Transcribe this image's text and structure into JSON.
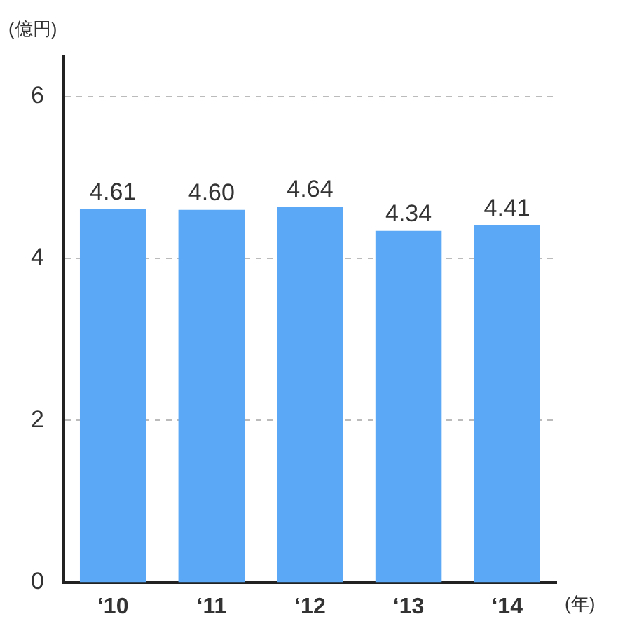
{
  "chart_data": {
    "type": "bar",
    "ylabel": "(億円)",
    "xlabel": "(年)",
    "categories": [
      "‘10",
      "‘11",
      "‘12",
      "‘13",
      "‘14"
    ],
    "values": [
      4.61,
      4.6,
      4.64,
      4.34,
      4.41
    ],
    "color": "#5aa8f6",
    "value_labels": [
      "4.61",
      "4.60",
      "4.64",
      "4.34",
      "4.41"
    ],
    "ylim": [
      0,
      6.5
    ],
    "yticks": [
      0,
      2,
      4,
      6
    ],
    "grid": "y"
  }
}
